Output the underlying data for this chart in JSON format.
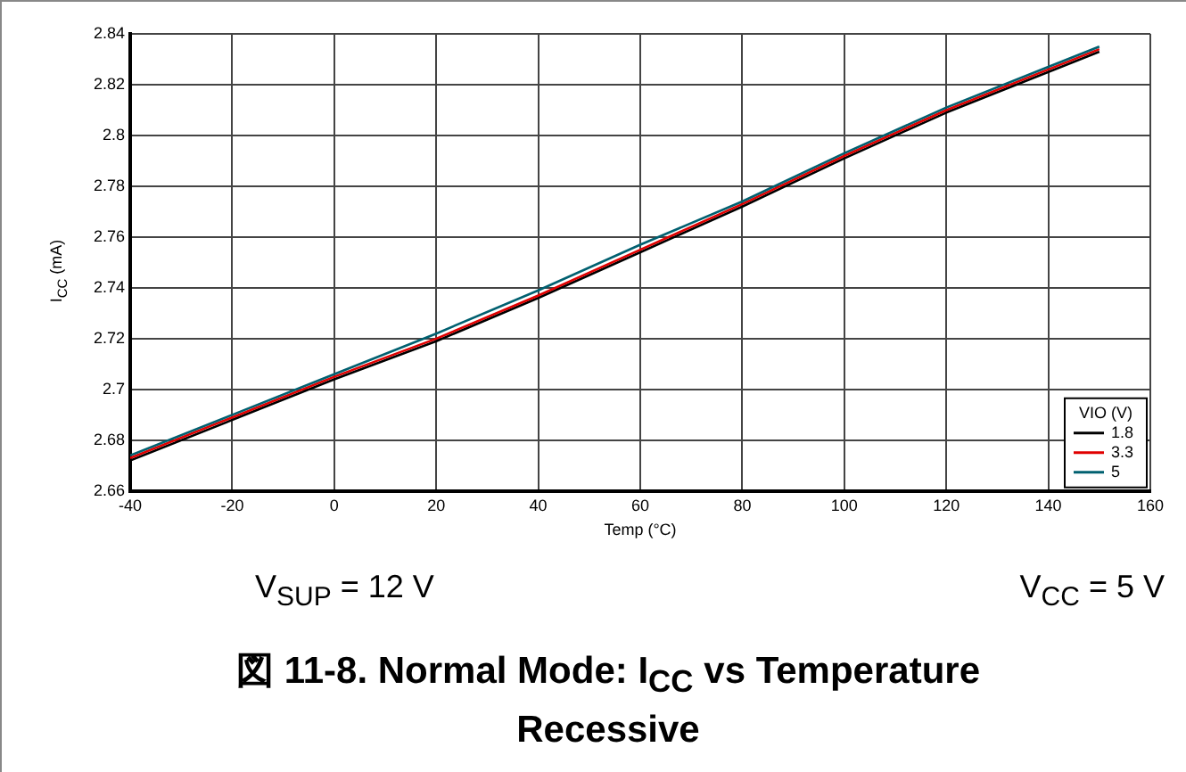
{
  "chart_data": {
    "type": "line",
    "title": "図 11-8. Normal Mode: I$_{CC}$ vs Temperature Recessive",
    "xlabel": "Temp (°C)",
    "ylabel": "I$_{CC}$ (mA)",
    "legend_title": "VIO (V)",
    "annotations": [
      "V$_{SUP}$ = 12 V",
      "V$_{CC}$ = 5 V"
    ],
    "x": [
      -40,
      -20,
      0,
      20,
      40,
      60,
      80,
      100,
      120,
      140,
      150
    ],
    "series": [
      {
        "name": "1.8",
        "color": "#000000",
        "values": [
          2.672,
          2.688,
          2.704,
          2.719,
          2.736,
          2.754,
          2.772,
          2.791,
          2.809,
          2.825,
          2.833
        ]
      },
      {
        "name": "3.3",
        "color": "#e00000",
        "values": [
          2.673,
          2.689,
          2.705,
          2.72,
          2.737,
          2.755,
          2.773,
          2.792,
          2.81,
          2.826,
          2.834
        ]
      },
      {
        "name": "5",
        "color": "#006070",
        "values": [
          2.674,
          2.69,
          2.706,
          2.722,
          2.739,
          2.757,
          2.774,
          2.793,
          2.811,
          2.827,
          2.835
        ]
      }
    ],
    "xlim": [
      -40,
      160
    ],
    "xticks": [
      -40,
      -20,
      0,
      20,
      40,
      60,
      80,
      100,
      120,
      140,
      160
    ],
    "ylim": [
      2.66,
      2.84
    ],
    "yticks": [
      2.66,
      2.68,
      2.7,
      2.72,
      2.74,
      2.76,
      2.78,
      2.8,
      2.82,
      2.84
    ],
    "grid": true,
    "legend": "bottom right",
    "marker": "none",
    "line_style": "solid"
  }
}
